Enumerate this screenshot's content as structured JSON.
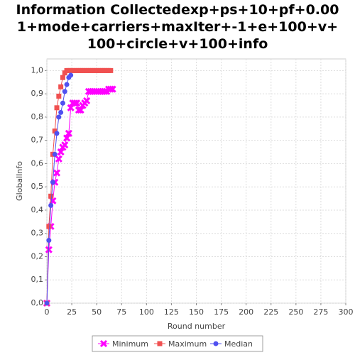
{
  "chart_data": {
    "type": "line",
    "title": "Information Collectedexp+ps+10+pf+0.001+mode+carriers+maxIter+-1+e+100+v+100+circle+v+100+info",
    "x_label": "Round number",
    "y_label": "GlobalInfo",
    "xlim": [
      0,
      300
    ],
    "xticks": [
      0,
      25,
      50,
      75,
      100,
      125,
      150,
      175,
      200,
      225,
      250,
      275,
      300
    ],
    "ylim": [
      0,
      1.05
    ],
    "yticks": [
      {
        "value": 0,
        "label": "0,0"
      },
      {
        "value": 0.1,
        "label": "0,1"
      },
      {
        "value": 0.2,
        "label": "0,2"
      },
      {
        "value": 0.3,
        "label": "0,3"
      },
      {
        "value": 0.4,
        "label": "0,4"
      },
      {
        "value": 0.5,
        "label": "0,5"
      },
      {
        "value": 0.6,
        "label": "0,6"
      },
      {
        "value": 0.7,
        "label": "0,7"
      },
      {
        "value": 0.8,
        "label": "0,8"
      },
      {
        "value": 0.9,
        "label": "0,9"
      },
      {
        "value": 1.0,
        "label": "1,0"
      }
    ],
    "grid": true,
    "legend": "bottom",
    "series": [
      {
        "name": "Minimum",
        "color": "#ff00ff",
        "marker": "cross",
        "x": [
          0,
          2,
          4,
          6,
          8,
          10,
          12,
          14,
          16,
          18,
          20,
          22,
          24,
          26,
          28,
          30,
          32,
          34,
          36,
          38,
          40,
          42,
          44,
          46,
          48,
          50,
          52,
          54,
          56,
          58,
          60,
          62,
          64,
          66
        ],
        "values": [
          0,
          0.23,
          0.33,
          0.44,
          0.52,
          0.56,
          0.62,
          0.65,
          0.67,
          0.68,
          0.71,
          0.73,
          0.84,
          0.86,
          0.86,
          0.86,
          0.83,
          0.83,
          0.85,
          0.86,
          0.87,
          0.91,
          0.91,
          0.91,
          0.91,
          0.91,
          0.91,
          0.91,
          0.91,
          0.91,
          0.91,
          0.92,
          0.92,
          0.92
        ]
      },
      {
        "name": "Maximum",
        "color": "#f05050",
        "marker": "square",
        "x": [
          0,
          2,
          4,
          6,
          8,
          10,
          12,
          14,
          16,
          18,
          20,
          22,
          24,
          26,
          28,
          30,
          32,
          34,
          36,
          38,
          40,
          42,
          44,
          46,
          48,
          50,
          52,
          54,
          56,
          58,
          60,
          62,
          64
        ],
        "values": [
          0,
          0.33,
          0.46,
          0.64,
          0.74,
          0.84,
          0.89,
          0.93,
          0.97,
          0.99,
          1.0,
          1.0,
          1.0,
          1.0,
          1.0,
          1.0,
          1.0,
          1.0,
          1.0,
          1.0,
          1.0,
          1.0,
          1.0,
          1.0,
          1.0,
          1.0,
          1.0,
          1.0,
          1.0,
          1.0,
          1.0,
          1.0,
          1.0
        ]
      },
      {
        "name": "Median",
        "color": "#5050f0",
        "marker": "circle",
        "x": [
          0,
          2,
          4,
          6,
          8,
          10,
          12,
          14,
          16,
          18,
          20,
          22,
          24
        ],
        "values": [
          0,
          0.27,
          0.42,
          0.52,
          0.64,
          0.73,
          0.8,
          0.82,
          0.86,
          0.91,
          0.94,
          0.97,
          0.98
        ]
      }
    ]
  }
}
